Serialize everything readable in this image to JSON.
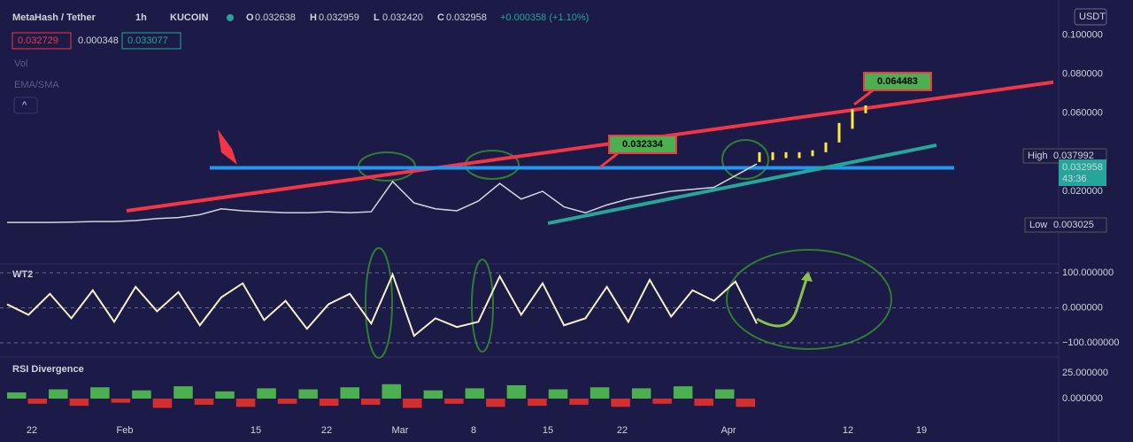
{
  "chart_data": {
    "type": "candlestick-screenshot",
    "header": {
      "symbol": "MetaHash / Tether",
      "interval": "1h",
      "exchange": "KUCOIN",
      "ohlc": [
        {
          "key": "O",
          "value": "0.032638"
        },
        {
          "key": "H",
          "value": "0.032959"
        },
        {
          "key": "L",
          "value": "0.032420"
        },
        {
          "key": "C",
          "value": "0.032958"
        }
      ],
      "change": "+0.000358 (+1.10%)",
      "boxes": [
        "0.032729",
        "0.000348",
        "0.033077"
      ],
      "vol": "Vol",
      "ema": "EMA/SMA"
    },
    "currency": "USDT",
    "x_labels": [
      "22",
      "Feb",
      "15",
      "22",
      "Mar",
      "8",
      "15",
      "22",
      "Apr",
      "12",
      "19"
    ],
    "ylim": [
      0,
      0.118
    ],
    "yticks": [
      {
        "value": 0.02,
        "label": "0.020000"
      },
      {
        "value": 0.06,
        "label": "0.060000"
      },
      {
        "value": 0.08,
        "label": "0.080000"
      },
      {
        "value": 0.1,
        "label": "0.100000"
      }
    ],
    "price": {
      "color": "#d1d4dc",
      "values": [
        0.004,
        0.004,
        0.004,
        0.0042,
        0.0045,
        0.0045,
        0.005,
        0.006,
        0.0065,
        0.008,
        0.011,
        0.01,
        0.0095,
        0.009,
        0.009,
        0.0095,
        0.009,
        0.0095,
        0.025,
        0.014,
        0.011,
        0.01,
        0.015,
        0.024,
        0.016,
        0.02,
        0.012,
        0.009,
        0.013,
        0.016,
        0.018,
        0.02,
        0.021,
        0.022,
        0.028,
        0.034
      ]
    },
    "projection": {
      "color": "#ffeb3b",
      "lows": [
        0.035,
        0.036,
        0.037,
        0.037,
        0.038,
        0.04,
        0.045,
        0.052,
        0.06
      ],
      "highs": [
        0.04,
        0.04,
        0.04,
        0.04,
        0.041,
        0.045,
        0.055,
        0.062,
        0.064
      ]
    },
    "trendlines": [
      {
        "color": "#f23645",
        "from": 0.01,
        "to": 0.0759
      },
      {
        "color": "#2196f3",
        "from": 0.032,
        "to": 0.032
      },
      {
        "color": "#26a69a",
        "from": 0.0036,
        "to": 0.0436
      }
    ],
    "annotations": [
      {
        "label": "0.032334",
        "value": 0.032334
      },
      {
        "label": "0.064483",
        "value": 0.064483
      }
    ],
    "price_labels": {
      "high_label": "High",
      "high": "0.037992",
      "last": "0.032958",
      "timer": "43:36",
      "low_label": "Low",
      "low": "0.003025"
    },
    "wt2": {
      "title": "WT2",
      "color": "#f5f0c8",
      "ylim": [
        -100,
        100
      ],
      "yticks": [
        {
          "value": 100,
          "label": "100.000000"
        },
        {
          "value": 0,
          "label": "0.000000"
        },
        {
          "value": -100,
          "label": "−100.000000"
        }
      ],
      "values": [
        10,
        -20,
        40,
        -30,
        50,
        -40,
        60,
        -10,
        45,
        -50,
        30,
        70,
        -35,
        20,
        -60,
        10,
        40,
        -45,
        95,
        -80,
        -30,
        -55,
        -40,
        90,
        -20,
        70,
        -50,
        -30,
        60,
        -40,
        80,
        -25,
        50,
        20,
        75,
        -45
      ]
    },
    "rsi": {
      "title": "RSI Divergence",
      "ylim": [
        -10,
        25
      ],
      "yticks": [
        {
          "value": 25,
          "label": "25.000000"
        },
        {
          "value": 0,
          "label": "0.000000"
        }
      ],
      "values": [
        6,
        -5,
        9,
        -7,
        11,
        -4,
        8,
        -9,
        12,
        -6,
        7,
        -8,
        10,
        -5,
        9,
        -7,
        11,
        -6,
        14,
        -9,
        8,
        -5,
        10,
        -8,
        13,
        -7,
        9,
        -6,
        11,
        -8,
        10,
        -5,
        12,
        -7,
        9,
        -8
      ]
    }
  }
}
